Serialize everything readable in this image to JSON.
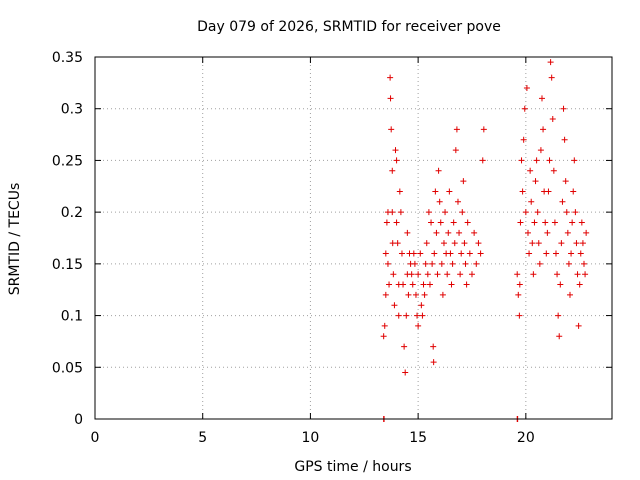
{
  "chart_data": {
    "type": "scatter",
    "title": "Day 079 of 2026, SRMTID for receiver pove",
    "xlabel": "GPS time / hours",
    "ylabel": "SRMTID / TECUs",
    "xlim": [
      0,
      24
    ],
    "ylim": [
      0,
      0.35
    ],
    "xticks": [
      "0",
      "5",
      "10",
      "15",
      "20"
    ],
    "yticks": [
      "0",
      "0.05",
      "0.1",
      "0.15",
      "0.2",
      "0.25",
      "0.3",
      "0.35"
    ],
    "grid": true,
    "marker": "+",
    "series": [
      {
        "name": "SRMTID",
        "color": "#e00000",
        "points": [
          [
            13.4,
            0.0
          ],
          [
            13.42,
            0.0
          ],
          [
            19.6,
            0.0
          ],
          [
            19.62,
            0.0
          ],
          [
            13.4,
            0.08
          ],
          [
            13.45,
            0.09
          ],
          [
            13.5,
            0.12
          ],
          [
            13.5,
            0.16
          ],
          [
            13.55,
            0.19
          ],
          [
            13.6,
            0.2
          ],
          [
            13.6,
            0.15
          ],
          [
            13.65,
            0.13
          ],
          [
            13.7,
            0.33
          ],
          [
            13.72,
            0.31
          ],
          [
            13.75,
            0.28
          ],
          [
            13.8,
            0.24
          ],
          [
            13.8,
            0.2
          ],
          [
            13.82,
            0.17
          ],
          [
            13.85,
            0.14
          ],
          [
            13.9,
            0.11
          ],
          [
            13.95,
            0.26
          ],
          [
            14.0,
            0.25
          ],
          [
            14.0,
            0.19
          ],
          [
            14.05,
            0.17
          ],
          [
            14.1,
            0.13
          ],
          [
            14.1,
            0.1
          ],
          [
            14.15,
            0.22
          ],
          [
            14.2,
            0.2
          ],
          [
            14.25,
            0.16
          ],
          [
            14.3,
            0.13
          ],
          [
            14.35,
            0.07
          ],
          [
            14.4,
            0.045
          ],
          [
            14.45,
            0.1
          ],
          [
            14.5,
            0.18
          ],
          [
            14.5,
            0.14
          ],
          [
            14.55,
            0.12
          ],
          [
            14.6,
            0.16
          ],
          [
            14.65,
            0.15
          ],
          [
            14.7,
            0.14
          ],
          [
            14.75,
            0.13
          ],
          [
            14.8,
            0.16
          ],
          [
            14.85,
            0.15
          ],
          [
            14.9,
            0.12
          ],
          [
            14.95,
            0.1
          ],
          [
            15.0,
            0.09
          ],
          [
            15.0,
            0.14
          ],
          [
            15.1,
            0.16
          ],
          [
            15.15,
            0.11
          ],
          [
            15.2,
            0.1
          ],
          [
            15.25,
            0.13
          ],
          [
            15.3,
            0.12
          ],
          [
            15.35,
            0.15
          ],
          [
            15.4,
            0.17
          ],
          [
            15.45,
            0.14
          ],
          [
            15.5,
            0.2
          ],
          [
            15.55,
            0.13
          ],
          [
            15.6,
            0.19
          ],
          [
            15.65,
            0.15
          ],
          [
            15.7,
            0.07
          ],
          [
            15.72,
            0.055
          ],
          [
            15.75,
            0.16
          ],
          [
            15.8,
            0.22
          ],
          [
            15.85,
            0.18
          ],
          [
            15.9,
            0.14
          ],
          [
            15.95,
            0.24
          ],
          [
            16.0,
            0.21
          ],
          [
            16.05,
            0.19
          ],
          [
            16.1,
            0.15
          ],
          [
            16.15,
            0.12
          ],
          [
            16.2,
            0.17
          ],
          [
            16.25,
            0.2
          ],
          [
            16.3,
            0.16
          ],
          [
            16.35,
            0.14
          ],
          [
            16.4,
            0.18
          ],
          [
            16.45,
            0.22
          ],
          [
            16.5,
            0.16
          ],
          [
            16.55,
            0.13
          ],
          [
            16.6,
            0.15
          ],
          [
            16.65,
            0.19
          ],
          [
            16.7,
            0.17
          ],
          [
            16.75,
            0.26
          ],
          [
            16.8,
            0.28
          ],
          [
            16.85,
            0.21
          ],
          [
            16.9,
            0.18
          ],
          [
            16.95,
            0.14
          ],
          [
            17.0,
            0.16
          ],
          [
            17.05,
            0.2
          ],
          [
            17.1,
            0.23
          ],
          [
            17.15,
            0.17
          ],
          [
            17.2,
            0.15
          ],
          [
            17.25,
            0.13
          ],
          [
            17.3,
            0.19
          ],
          [
            17.4,
            0.16
          ],
          [
            17.5,
            0.14
          ],
          [
            17.6,
            0.18
          ],
          [
            17.7,
            0.15
          ],
          [
            17.8,
            0.17
          ],
          [
            17.9,
            0.16
          ],
          [
            18.0,
            0.25
          ],
          [
            18.05,
            0.28
          ],
          [
            19.6,
            0.14
          ],
          [
            19.65,
            0.12
          ],
          [
            19.7,
            0.1
          ],
          [
            19.72,
            0.13
          ],
          [
            19.75,
            0.19
          ],
          [
            19.8,
            0.25
          ],
          [
            19.85,
            0.22
          ],
          [
            19.9,
            0.27
          ],
          [
            19.95,
            0.3
          ],
          [
            20.0,
            0.2
          ],
          [
            20.05,
            0.32
          ],
          [
            20.1,
            0.18
          ],
          [
            20.15,
            0.16
          ],
          [
            20.2,
            0.24
          ],
          [
            20.25,
            0.21
          ],
          [
            20.3,
            0.17
          ],
          [
            20.35,
            0.14
          ],
          [
            20.4,
            0.19
          ],
          [
            20.45,
            0.23
          ],
          [
            20.5,
            0.25
          ],
          [
            20.55,
            0.2
          ],
          [
            20.6,
            0.17
          ],
          [
            20.65,
            0.15
          ],
          [
            20.7,
            0.26
          ],
          [
            20.75,
            0.31
          ],
          [
            20.8,
            0.28
          ],
          [
            20.85,
            0.22
          ],
          [
            20.9,
            0.19
          ],
          [
            20.95,
            0.16
          ],
          [
            21.0,
            0.18
          ],
          [
            21.05,
            0.22
          ],
          [
            21.1,
            0.25
          ],
          [
            21.15,
            0.345
          ],
          [
            21.2,
            0.33
          ],
          [
            21.25,
            0.29
          ],
          [
            21.3,
            0.24
          ],
          [
            21.35,
            0.19
          ],
          [
            21.4,
            0.16
          ],
          [
            21.45,
            0.14
          ],
          [
            21.5,
            0.1
          ],
          [
            21.55,
            0.08
          ],
          [
            21.6,
            0.13
          ],
          [
            21.65,
            0.17
          ],
          [
            21.7,
            0.21
          ],
          [
            21.75,
            0.3
          ],
          [
            21.8,
            0.27
          ],
          [
            21.85,
            0.23
          ],
          [
            21.9,
            0.2
          ],
          [
            21.95,
            0.18
          ],
          [
            22.0,
            0.15
          ],
          [
            22.05,
            0.12
          ],
          [
            22.1,
            0.16
          ],
          [
            22.15,
            0.19
          ],
          [
            22.2,
            0.22
          ],
          [
            22.25,
            0.25
          ],
          [
            22.3,
            0.2
          ],
          [
            22.35,
            0.17
          ],
          [
            22.4,
            0.14
          ],
          [
            22.45,
            0.09
          ],
          [
            22.5,
            0.13
          ],
          [
            22.55,
            0.16
          ],
          [
            22.6,
            0.19
          ],
          [
            22.65,
            0.17
          ],
          [
            22.7,
            0.15
          ],
          [
            22.75,
            0.14
          ],
          [
            22.8,
            0.18
          ]
        ]
      }
    ]
  }
}
